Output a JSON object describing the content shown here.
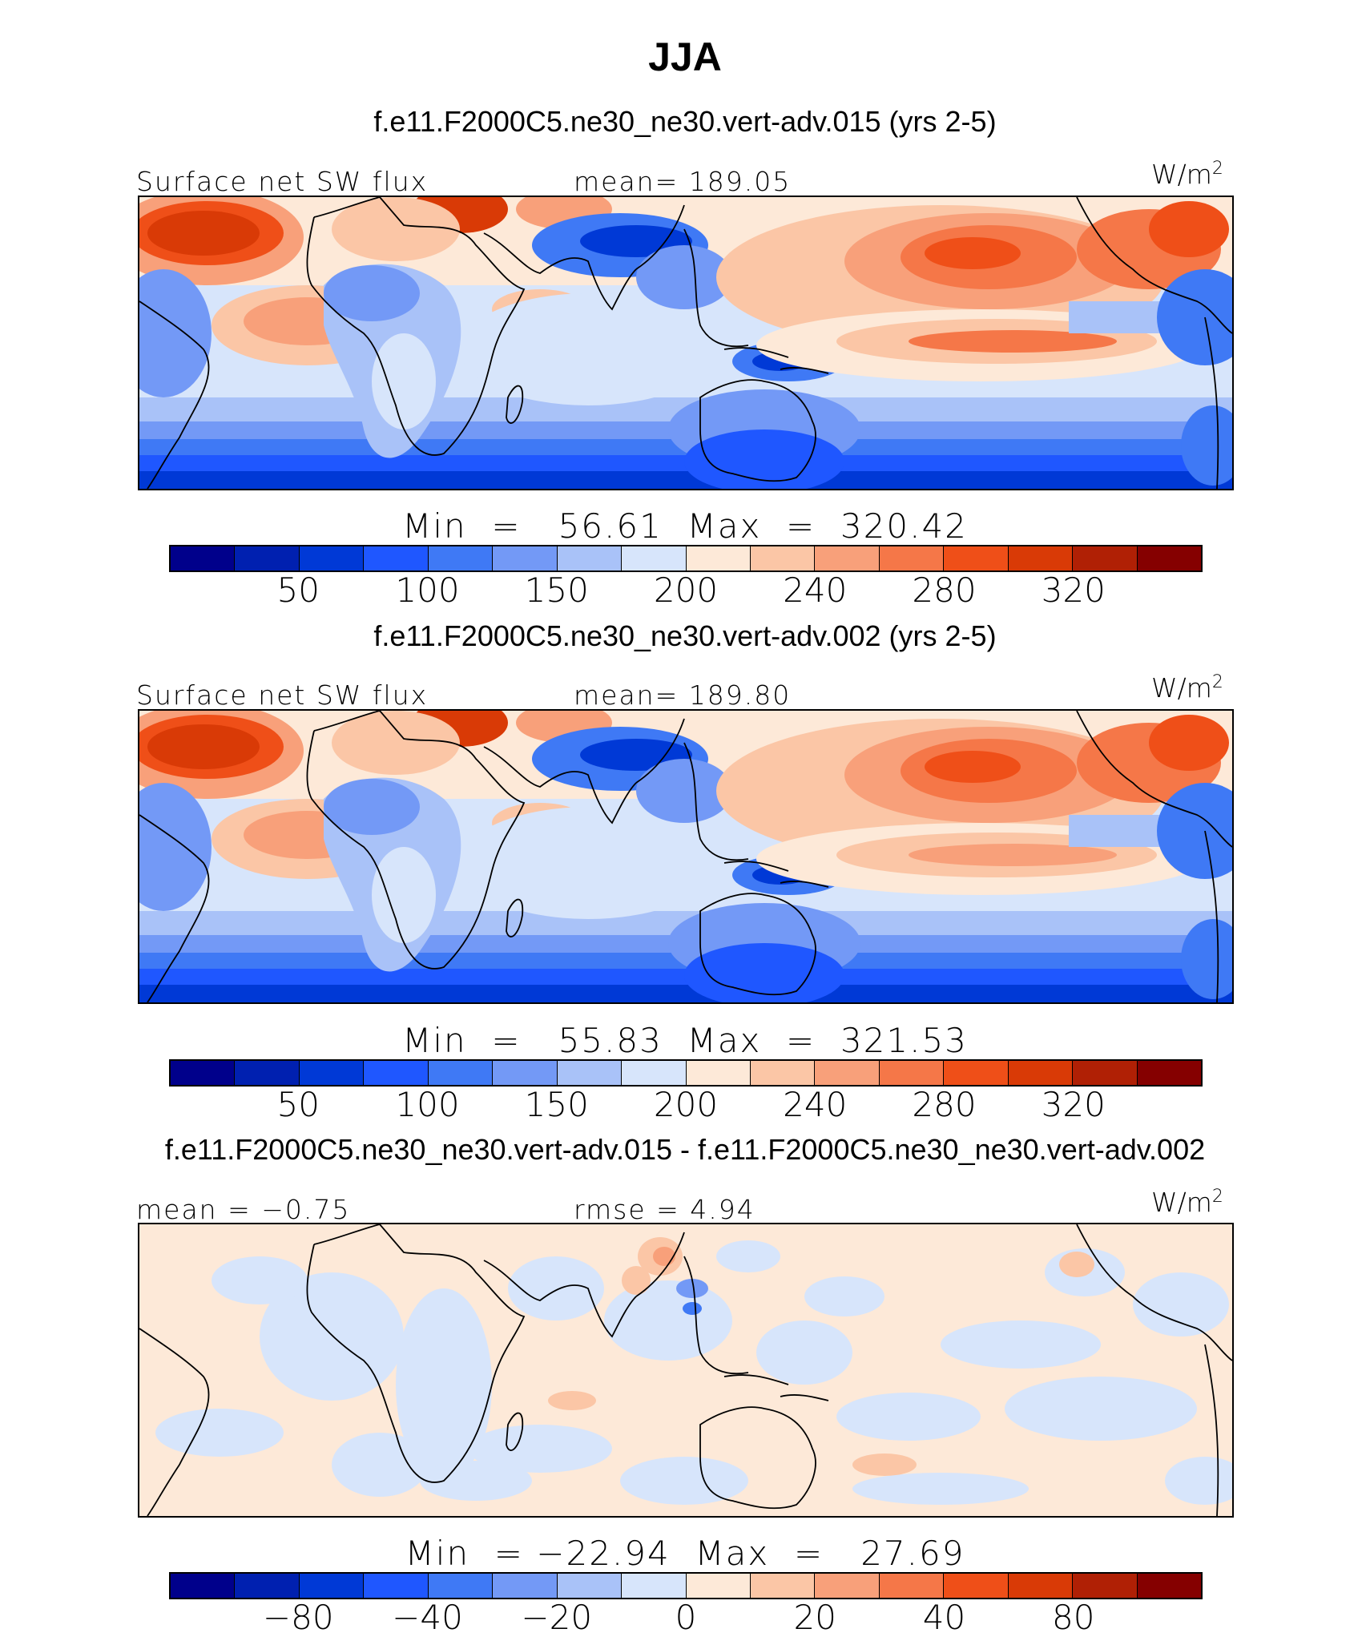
{
  "title": "JJA",
  "colors": {
    "scale": [
      "#00008b",
      "#0020b0",
      "#0039d6",
      "#1f57ff",
      "#3f79f5",
      "#7399f6",
      "#a9c2f8",
      "#d7e5fb",
      "#fde9d8",
      "#fbc6a6",
      "#f8a07a",
      "#f57748",
      "#ef4f18",
      "#d93a06",
      "#b02005",
      "#850000"
    ],
    "coast": "#000000"
  },
  "panels": [
    {
      "title": "f.e11.F2000C5.ne30_ne30.vert-adv.015 (yrs 2-5)",
      "left_label": "Surface net SW flux",
      "center_label": "mean= 189.05",
      "units": "W/m",
      "units_sup": "2",
      "minmax": "Min  =   56.61  Max  =  320.42",
      "field": "absolute"
    },
    {
      "title": "f.e11.F2000C5.ne30_ne30.vert-adv.002 (yrs 2-5)",
      "left_label": "Surface net SW flux",
      "center_label": "mean= 189.80",
      "units": "W/m",
      "units_sup": "2",
      "minmax": "Min  =   55.83  Max  =  321.53",
      "field": "absolute"
    },
    {
      "title": "f.e11.F2000C5.ne30_ne30.vert-adv.015 - f.e11.F2000C5.ne30_ne30.vert-adv.002",
      "left_label": "mean =  −0.75",
      "center_label": "rmse =    4.94",
      "units": "W/m",
      "units_sup": "2",
      "minmax": "Min  = −22.94  Max  =   27.69",
      "field": "difference"
    }
  ],
  "chart_data": [
    {
      "type": "heatmap",
      "title": "f.e11.F2000C5.ne30_ne30.vert-adv.015 (yrs 2-5)",
      "variable": "Surface net SW flux",
      "units": "W/m2",
      "season": "JJA",
      "mean": 189.05,
      "min": 56.61,
      "max": 320.42,
      "colorbar_ticks": [
        "50",
        "100",
        "150",
        "200",
        "240",
        "280",
        "320"
      ],
      "colorbar_levels": 16
    },
    {
      "type": "heatmap",
      "title": "f.e11.F2000C5.ne30_ne30.vert-adv.002 (yrs 2-5)",
      "variable": "Surface net SW flux",
      "units": "W/m2",
      "season": "JJA",
      "mean": 189.8,
      "min": 55.83,
      "max": 321.53,
      "colorbar_ticks": [
        "50",
        "100",
        "150",
        "200",
        "240",
        "280",
        "320"
      ],
      "colorbar_levels": 16
    },
    {
      "type": "heatmap",
      "title": "f.e11.F2000C5.ne30_ne30.vert-adv.015 - f.e11.F2000C5.ne30_ne30.vert-adv.002",
      "variable": "Surface net SW flux difference",
      "units": "W/m2",
      "season": "JJA",
      "mean": -0.75,
      "rmse": 4.94,
      "min": -22.94,
      "max": 27.69,
      "colorbar_ticks": [
        "−80",
        "−40",
        "−20",
        "0",
        "20",
        "40",
        "80"
      ],
      "colorbar_levels": 16
    }
  ]
}
